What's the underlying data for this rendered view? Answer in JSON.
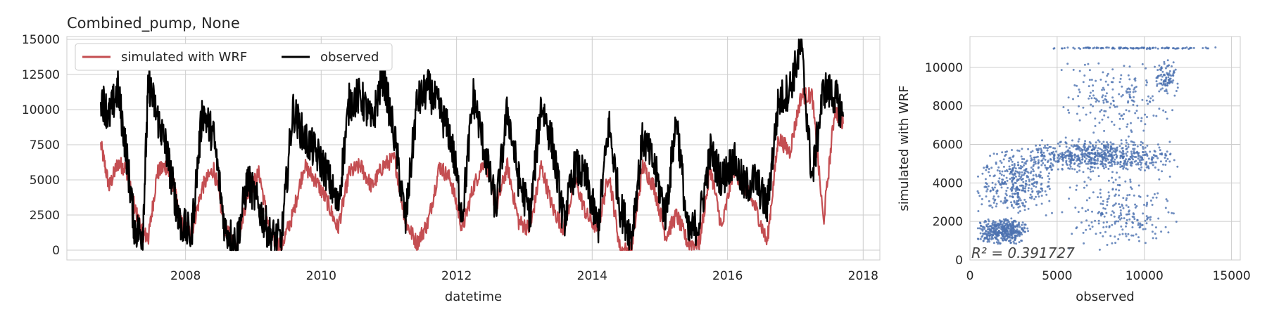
{
  "chart_data": [
    {
      "type": "line",
      "title": "Combined_pump, None",
      "xlabel": "datetime",
      "ylabel": "",
      "xlim": [
        "2006-04-01",
        "2018-04-01"
      ],
      "ylim": [
        -700,
        15200
      ],
      "x_ticks": [
        "2008",
        "2010",
        "2012",
        "2014",
        "2016",
        "2018"
      ],
      "y_ticks": [
        "0",
        "2500",
        "5000",
        "7500",
        "10000",
        "12500",
        "15000"
      ],
      "grid": true,
      "legend": "top-left",
      "series": [
        {
          "name": "simulated with WRF",
          "color": "#c44e52",
          "x": [
            "2006-10-01",
            "2006-11-15",
            "2007-01-01",
            "2007-02-15",
            "2007-04-01",
            "2007-05-15",
            "2007-06-15",
            "2007-08-01",
            "2007-09-15",
            "2007-11-01",
            "2007-12-01",
            "2008-02-01",
            "2008-04-01",
            "2008-06-01",
            "2008-08-01",
            "2008-10-01",
            "2008-12-01",
            "2009-02-01",
            "2009-04-01",
            "2009-06-01",
            "2009-08-01",
            "2009-10-01",
            "2009-12-01",
            "2010-02-01",
            "2010-04-01",
            "2010-06-01",
            "2010-08-01",
            "2010-10-01",
            "2010-12-01",
            "2011-02-01",
            "2011-04-01",
            "2011-06-01",
            "2011-08-01",
            "2011-10-01",
            "2011-12-01",
            "2012-02-01",
            "2012-04-01",
            "2012-06-01",
            "2012-08-01",
            "2012-10-01",
            "2012-12-01",
            "2013-02-01",
            "2013-04-01",
            "2013-06-01",
            "2013-08-01",
            "2013-10-01",
            "2013-12-01",
            "2014-02-01",
            "2014-04-01",
            "2014-06-01",
            "2014-08-01",
            "2014-10-01",
            "2014-12-01",
            "2015-02-01",
            "2015-04-01",
            "2015-06-01",
            "2015-08-01",
            "2015-10-01",
            "2015-12-01",
            "2016-02-01",
            "2016-04-01",
            "2016-06-01",
            "2016-08-01",
            "2016-10-01",
            "2016-12-01",
            "2017-02-01",
            "2017-04-01",
            "2017-06-01",
            "2017-08-01",
            "2017-09-15"
          ],
          "values": [
            7500,
            4500,
            6200,
            5800,
            3000,
            1200,
            900,
            5500,
            6000,
            4500,
            2000,
            1200,
            4500,
            5800,
            1500,
            300,
            4000,
            5500,
            1000,
            300,
            2500,
            6000,
            5000,
            3500,
            1500,
            5500,
            6000,
            4500,
            6000,
            6500,
            2000,
            500,
            2000,
            6000,
            5000,
            1500,
            4500,
            6500,
            3000,
            6000,
            2000,
            1500,
            6000,
            3000,
            1500,
            5000,
            2500,
            1500,
            5500,
            0,
            0,
            6000,
            4500,
            1000,
            2500,
            500,
            500,
            5800,
            1500,
            5800,
            4500,
            3000,
            500,
            8000,
            7000,
            11000,
            11000,
            2000,
            10000,
            9000
          ]
        },
        {
          "name": "observed",
          "color": "#000000",
          "x": [
            "2006-10-01",
            "2006-11-15",
            "2007-01-01",
            "2007-02-15",
            "2007-04-01",
            "2007-05-15",
            "2007-06-15",
            "2007-08-01",
            "2007-09-15",
            "2007-11-01",
            "2007-12-01",
            "2008-02-01",
            "2008-04-01",
            "2008-06-01",
            "2008-08-01",
            "2008-10-01",
            "2008-12-01",
            "2009-02-01",
            "2009-04-01",
            "2009-06-01",
            "2009-08-01",
            "2009-10-01",
            "2009-12-01",
            "2010-02-01",
            "2010-04-01",
            "2010-06-01",
            "2010-08-01",
            "2010-10-01",
            "2010-12-01",
            "2011-02-01",
            "2011-04-01",
            "2011-06-01",
            "2011-08-01",
            "2011-10-01",
            "2011-12-01",
            "2012-02-01",
            "2012-04-01",
            "2012-06-01",
            "2012-08-01",
            "2012-10-01",
            "2012-12-01",
            "2013-02-01",
            "2013-04-01",
            "2013-06-01",
            "2013-08-01",
            "2013-10-01",
            "2013-12-01",
            "2014-02-01",
            "2014-04-01",
            "2014-06-01",
            "2014-08-01",
            "2014-10-01",
            "2014-12-01",
            "2015-02-01",
            "2015-04-01",
            "2015-06-01",
            "2015-08-01",
            "2015-10-01",
            "2015-12-01",
            "2016-02-01",
            "2016-04-01",
            "2016-06-01",
            "2016-08-01",
            "2016-10-01",
            "2016-12-01",
            "2017-02-01",
            "2017-04-01",
            "2017-06-01",
            "2017-08-01",
            "2017-09-15"
          ],
          "values": [
            11000,
            9500,
            11500,
            7000,
            1500,
            1200,
            12000,
            9500,
            7500,
            4000,
            2000,
            1000,
            10000,
            8000,
            1500,
            500,
            5000,
            3000,
            1000,
            700,
            10000,
            8000,
            7000,
            5500,
            3000,
            10500,
            11000,
            9000,
            12500,
            8000,
            2000,
            10500,
            11500,
            10000,
            8000,
            2500,
            11000,
            7000,
            3000,
            10000,
            5000,
            2500,
            10500,
            7500,
            2000,
            6000,
            5000,
            1500,
            9000,
            3000,
            1000,
            8000,
            6000,
            2500,
            9500,
            1000,
            2000,
            7000,
            5000,
            6500,
            4500,
            5000,
            3000,
            10500,
            11500,
            14500,
            5000,
            11500,
            11000,
            9500
          ]
        }
      ]
    },
    {
      "type": "scatter",
      "title": "",
      "xlabel": "observed",
      "ylabel": "simulated with WRF",
      "xlim": [
        0,
        15500
      ],
      "ylim": [
        0,
        11600
      ],
      "x_ticks": [
        "0",
        "5000",
        "10000",
        "15000"
      ],
      "y_ticks": [
        "0",
        "2000",
        "4000",
        "6000",
        "8000",
        "10000"
      ],
      "grid": true,
      "annotation": "R² = 0.391727",
      "point_color": "#4c72b0",
      "clusters": [
        {
          "x_range": [
            300,
            3500
          ],
          "y_range": [
            800,
            2200
          ],
          "count": 420
        },
        {
          "x_range": [
            300,
            5000
          ],
          "y_range": [
            2200,
            6000
          ],
          "count": 380
        },
        {
          "x_range": [
            3000,
            12000
          ],
          "y_range": [
            4500,
            6300
          ],
          "count": 650
        },
        {
          "x_range": [
            5000,
            12000
          ],
          "y_range": [
            300,
            4500
          ],
          "count": 220
        },
        {
          "x_range": [
            5000,
            12000
          ],
          "y_range": [
            6300,
            10500
          ],
          "count": 180
        },
        {
          "x_range": [
            10500,
            12000
          ],
          "y_range": [
            8500,
            10500
          ],
          "count": 90
        },
        {
          "x_range": [
            3800,
            14500
          ],
          "y_range": [
            10950,
            11050
          ],
          "count": 110
        }
      ]
    }
  ]
}
